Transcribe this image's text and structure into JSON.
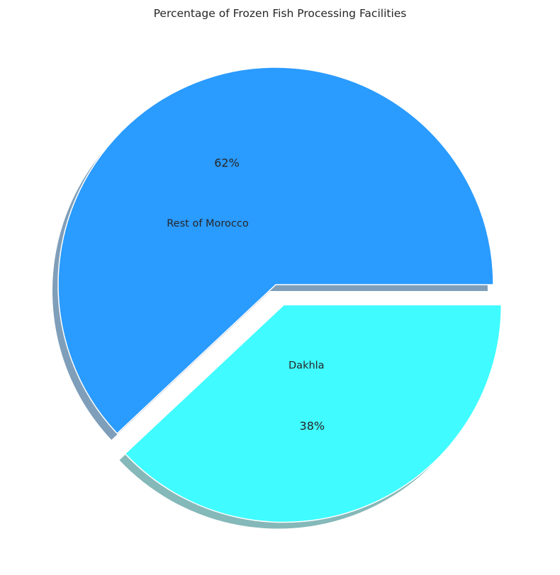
{
  "chart_data": {
    "type": "pie",
    "title": "Percentage of Frozen Fish Processing Facilities",
    "slices": [
      {
        "label": "Rest of Morocco",
        "value": 62,
        "pct_label": "62%",
        "color": "#2a9bff",
        "exploded": false
      },
      {
        "label": "Dakhla",
        "value": 38,
        "pct_label": "38%",
        "color": "#40fbff",
        "exploded": true
      }
    ],
    "shadow": true,
    "start_angle_deg": 0,
    "direction": "counterclockwise"
  }
}
